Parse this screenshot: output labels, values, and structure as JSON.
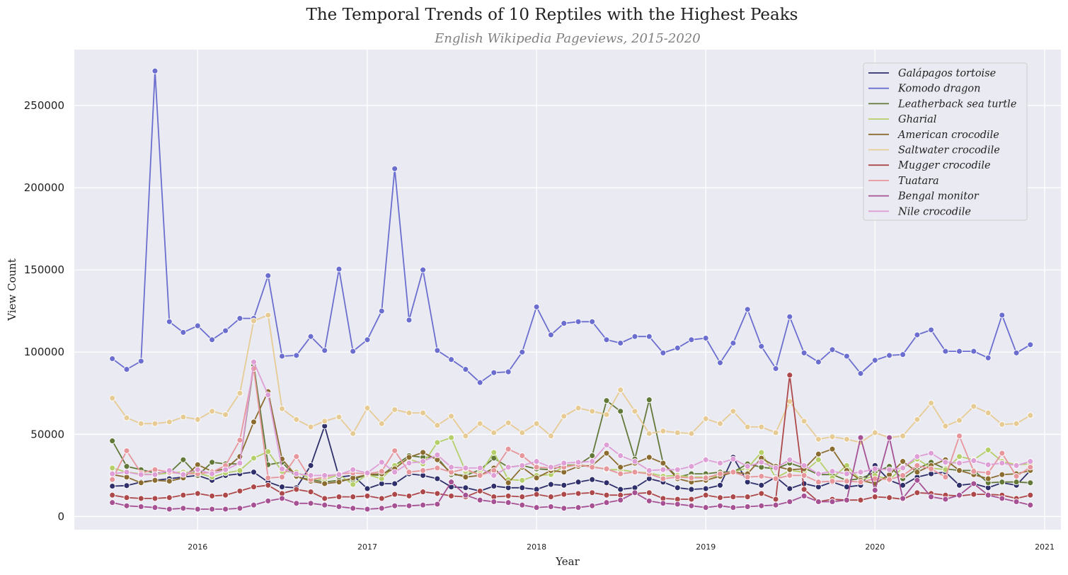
{
  "chart_data": {
    "type": "line",
    "title": "The Temporal Trends of 10 Reptiles with the Highest Peaks",
    "subtitle": "English Wikipedia Pageviews, 2015-2020",
    "xlabel": "Year",
    "ylabel": "View Count",
    "x_start": "2015-07",
    "x_end": "2020-12",
    "x_ticks": [
      "2016",
      "2017",
      "2018",
      "2019",
      "2020",
      "2021"
    ],
    "y_ticks": [
      "0",
      "50000",
      "100000",
      "150000",
      "200000",
      "250000"
    ],
    "xlim": [
      "2015-04-10",
      "2021-02-05"
    ],
    "ylim": [
      -8000,
      284000
    ],
    "grid": true,
    "legend_position": "top-right",
    "series": [
      {
        "name": "Galápagos tortoise",
        "color": "#2f2f6b",
        "values": [
          18500,
          18800,
          21000,
          22000,
          23000,
          24000,
          25000,
          22000,
          25000,
          26000,
          27000,
          21000,
          18000,
          17500,
          31000,
          55000,
          24000,
          25000,
          17000,
          20000,
          20000,
          26000,
          25000,
          23000,
          18000,
          17500,
          15500,
          18500,
          17500,
          17500,
          16500,
          19500,
          19000,
          21000,
          22500,
          20500,
          16500,
          17500,
          23000,
          21000,
          17500,
          16500,
          17000,
          19000,
          36000,
          21000,
          19000,
          24000,
          17000,
          20000,
          18000,
          21000,
          18000,
          19000,
          31000,
          22000,
          19000,
          24000,
          26000,
          27000,
          19000,
          20000,
          17500,
          20500,
          19000,
          28000
        ]
      },
      {
        "name": "Komodo dragon",
        "color": "#6b6ecf",
        "values": [
          96000,
          89500,
          94500,
          271000,
          118500,
          112000,
          116000,
          107500,
          113000,
          120500,
          120500,
          146500,
          97500,
          98000,
          109500,
          101000,
          150500,
          100500,
          107500,
          125000,
          211500,
          119500,
          150000,
          101000,
          95500,
          89500,
          81500,
          87500,
          88000,
          100000,
          127500,
          110500,
          117500,
          118500,
          118500,
          107500,
          105500,
          109500,
          109500,
          99500,
          102500,
          107500,
          108500,
          93500,
          105500,
          126000,
          103500,
          90000,
          121500,
          99500,
          94000,
          101500,
          97500,
          87000,
          95000,
          98000,
          98500,
          110500,
          113500,
          100500,
          100500,
          100500,
          96500,
          122500,
          99500,
          104500
        ]
      },
      {
        "name": "Leatherback sea turtle",
        "color": "#637939",
        "values": [
          46000,
          30500,
          28500,
          26500,
          26500,
          34500,
          25000,
          33000,
          32000,
          32000,
          92000,
          31500,
          33000,
          24000,
          22500,
          21000,
          22000,
          22500,
          25500,
          25000,
          31000,
          37000,
          36000,
          36000,
          25500,
          25000,
          28500,
          35500,
          30000,
          31000,
          29000,
          28500,
          31000,
          31500,
          37000,
          70500,
          64000,
          35000,
          71000,
          32500,
          24000,
          26000,
          26000,
          27000,
          27000,
          32000,
          30000,
          29000,
          32500,
          29500,
          25500,
          25500,
          22000,
          23000,
          27000,
          30500,
          23000,
          29000,
          33000,
          29000,
          28000,
          28000,
          20500,
          21000,
          21000,
          20500
        ]
      },
      {
        "name": "Gharial",
        "color": "#b5cf6b",
        "values": [
          29500,
          27000,
          26000,
          25500,
          26500,
          27000,
          26500,
          24000,
          26500,
          28000,
          35500,
          39500,
          27500,
          27000,
          23000,
          22500,
          25500,
          19500,
          25500,
          23000,
          31000,
          35000,
          32000,
          45000,
          48000,
          27500,
          26000,
          39000,
          22500,
          22000,
          25000,
          25500,
          30500,
          31500,
          30500,
          28500,
          28500,
          27000,
          26500,
          24500,
          25000,
          24000,
          24000,
          24500,
          27000,
          29500,
          39000,
          23500,
          28000,
          27000,
          34500,
          23500,
          31000,
          22000,
          25000,
          22500,
          29500,
          35000,
          29500,
          28500,
          36500,
          34500,
          40500,
          33500,
          31500,
          32000
        ]
      },
      {
        "name": "American crocodile",
        "color": "#8c6d31",
        "values": [
          25500,
          24000,
          20500,
          22000,
          21500,
          23500,
          31500,
          27500,
          29000,
          36500,
          57500,
          76000,
          35000,
          24500,
          21500,
          20000,
          21000,
          23500,
          25500,
          26000,
          29000,
          36000,
          39000,
          34500,
          26500,
          24000,
          25000,
          29500,
          20500,
          30000,
          23500,
          28000,
          27000,
          30500,
          31000,
          38500,
          30000,
          32500,
          36000,
          32500,
          23000,
          21000,
          22000,
          24500,
          27000,
          26000,
          35500,
          30500,
          28500,
          29000,
          38000,
          41000,
          28000,
          22000,
          20000,
          25500,
          33500,
          27000,
          31000,
          34500,
          28000,
          25500,
          23000,
          25500,
          26000,
          28000
        ]
      },
      {
        "name": "Saltwater crocodile",
        "color": "#e7cb94",
        "values": [
          72000,
          60000,
          56500,
          56500,
          57500,
          60500,
          59000,
          64000,
          62000,
          75000,
          119000,
          122500,
          65500,
          59000,
          54500,
          58000,
          60500,
          50500,
          66000,
          56500,
          65000,
          63000,
          63000,
          55500,
          61000,
          49000,
          56500,
          51000,
          57000,
          51000,
          56500,
          49000,
          61000,
          66000,
          64000,
          62000,
          77000,
          64000,
          50500,
          52000,
          51000,
          50500,
          59500,
          56500,
          64000,
          54500,
          54500,
          51000,
          70000,
          58000,
          47000,
          48500,
          47000,
          45000,
          51000,
          48000,
          49000,
          59000,
          69000,
          55000,
          58500,
          67000,
          63000,
          56000,
          56500,
          61500
        ]
      },
      {
        "name": "Mugger crocodile",
        "color": "#ad494a",
        "values": [
          13000,
          11500,
          11000,
          11000,
          11500,
          13000,
          14000,
          12500,
          13000,
          15500,
          18000,
          19000,
          14000,
          16500,
          15000,
          11000,
          12000,
          12000,
          12500,
          11000,
          13500,
          12500,
          15000,
          14000,
          12500,
          12000,
          15500,
          12000,
          12500,
          12000,
          13500,
          12000,
          13500,
          14000,
          14500,
          13000,
          13000,
          14000,
          14500,
          11000,
          10500,
          10500,
          13000,
          11500,
          12000,
          12000,
          14000,
          10500,
          86000,
          16500,
          9000,
          10500,
          10000,
          10000,
          12000,
          11500,
          10500,
          14500,
          14000,
          13000,
          12500,
          13500,
          13500,
          13000,
          11000,
          13000
        ]
      },
      {
        "name": "Tuatara",
        "color": "#e7969c",
        "values": [
          22500,
          40000,
          26500,
          28500,
          27000,
          26000,
          26000,
          27000,
          31000,
          46500,
          90000,
          23500,
          24000,
          36500,
          22500,
          24000,
          26000,
          26500,
          26000,
          27500,
          40000,
          27000,
          28000,
          29500,
          27000,
          29000,
          25000,
          28000,
          41000,
          37000,
          30000,
          29500,
          30000,
          31500,
          30000,
          29000,
          26000,
          27000,
          26000,
          23000,
          24000,
          23500,
          23500,
          26000,
          27000,
          24000,
          24500,
          23000,
          25000,
          25000,
          21000,
          21500,
          21500,
          21000,
          23000,
          22500,
          25000,
          31000,
          29000,
          24000,
          49000,
          27500,
          26500,
          38500,
          24500,
          30000
        ]
      },
      {
        "name": "Bengal monitor",
        "color": "#a55194",
        "values": [
          8500,
          6500,
          6000,
          5500,
          4500,
          5000,
          4500,
          4500,
          4500,
          5000,
          7000,
          9500,
          11000,
          8000,
          8000,
          7000,
          6000,
          5000,
          4500,
          5000,
          6500,
          6500,
          7000,
          7500,
          21000,
          13000,
          10000,
          9000,
          8500,
          7000,
          5500,
          6000,
          5000,
          5500,
          6500,
          8500,
          10000,
          14500,
          9500,
          8000,
          7500,
          6500,
          5500,
          6500,
          5500,
          6000,
          6500,
          7000,
          9000,
          12500,
          9000,
          9000,
          10000,
          48000,
          16000,
          48000,
          11000,
          22000,
          12000,
          10500,
          13000,
          20000,
          13000,
          11000,
          9000,
          7000
        ]
      },
      {
        "name": "Nile crocodile",
        "color": "#de9ed6",
        "values": [
          26000,
          27000,
          25500,
          25500,
          28000,
          25500,
          28500,
          26000,
          28500,
          32500,
          94000,
          74000,
          29000,
          26000,
          25000,
          25000,
          25500,
          28500,
          26500,
          33000,
          27000,
          32500,
          33500,
          37500,
          30000,
          29500,
          29500,
          25000,
          30000,
          31000,
          33500,
          30000,
          32500,
          33000,
          33500,
          43500,
          37000,
          33500,
          28000,
          28500,
          28500,
          30500,
          34500,
          32500,
          35000,
          30500,
          33000,
          29500,
          34500,
          31000,
          26000,
          27500,
          26000,
          27000,
          29000,
          28500,
          29500,
          36500,
          38500,
          33000,
          32500,
          34000,
          31500,
          32500,
          31000,
          33500
        ]
      }
    ]
  }
}
